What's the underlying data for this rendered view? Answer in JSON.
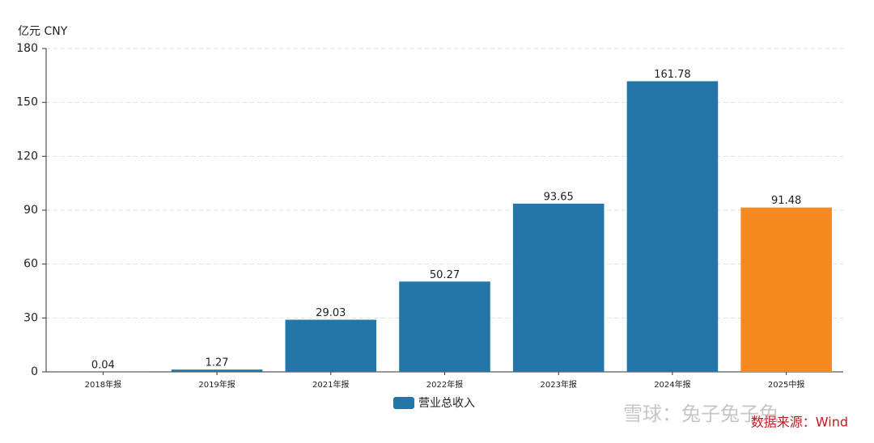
{
  "chart_data": {
    "type": "bar",
    "y_label": "亿元  CNY",
    "categories": [
      "2018年报",
      "2019年报",
      "2021年报",
      "2022年报",
      "2023年报",
      "2024年报",
      "2025中报"
    ],
    "series": [
      {
        "name": "营业总收入",
        "color": "#2277a8",
        "values": [
          0.04,
          1.27,
          29.03,
          50.27,
          93.65,
          161.78,
          91.48
        ],
        "colors": [
          "#2277a8",
          "#2277a8",
          "#2277a8",
          "#2277a8",
          "#2277a8",
          "#2277a8",
          "#f6891f"
        ]
      }
    ],
    "ylim": [
      0,
      180
    ],
    "yticks": [
      0,
      30,
      60,
      90,
      120,
      150,
      180
    ],
    "grid": true,
    "source": "数据来源：Wind",
    "watermark": "雪球：兔子兔子兔"
  }
}
